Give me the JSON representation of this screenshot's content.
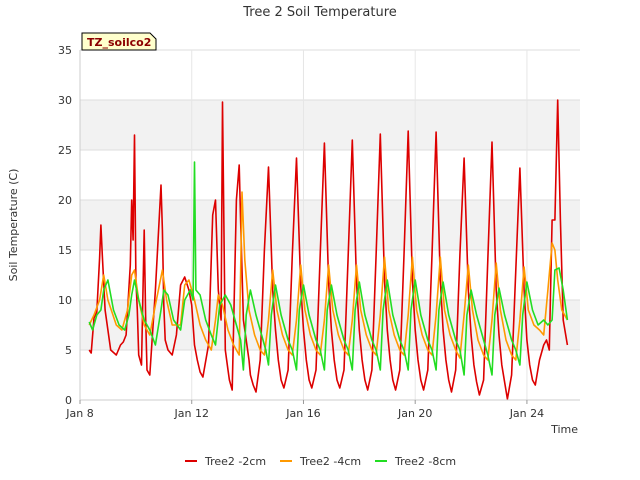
{
  "chart_data": {
    "type": "line",
    "title": "Tree 2 Soil Temperature",
    "xlabel": "Time",
    "ylabel": "Soil Temperature (C)",
    "site_label": "TZ_soilco2",
    "ylim": [
      0,
      35
    ],
    "xlim": [
      8.0,
      25.9
    ],
    "yticks": [
      0,
      5,
      10,
      15,
      20,
      25,
      30,
      35
    ],
    "xticks": [
      {
        "x": 8,
        "label": "Jan 8"
      },
      {
        "x": 12,
        "label": "Jan 12"
      },
      {
        "x": 16,
        "label": "Jan 16"
      },
      {
        "x": 20,
        "label": "Jan 20"
      },
      {
        "x": 24,
        "label": "Jan 24"
      }
    ],
    "grid": true,
    "legend_position": "bottom",
    "series": [
      {
        "name": "Tree2 -2cm",
        "color": "#dd0000",
        "x": [
          8.33,
          8.4,
          8.5,
          8.6,
          8.7,
          8.75,
          8.8,
          8.9,
          9.1,
          9.3,
          9.45,
          9.55,
          9.65,
          9.8,
          9.85,
          9.9,
          9.95,
          10.0,
          10.05,
          10.1,
          10.2,
          10.3,
          10.35,
          10.4,
          10.5,
          10.7,
          10.9,
          10.95,
          11.0,
          11.05,
          11.15,
          11.3,
          11.45,
          11.6,
          11.75,
          11.9,
          12.0,
          12.1,
          12.2,
          12.3,
          12.4,
          12.6,
          12.75,
          12.85,
          12.95,
          13.05,
          13.1,
          13.2,
          13.3,
          13.35,
          13.45,
          13.6,
          13.7,
          13.75,
          13.85,
          13.95,
          14.05,
          14.1,
          14.2,
          14.3,
          14.45,
          14.6,
          14.75,
          14.9,
          15.0,
          15.1,
          15.2,
          15.3,
          15.45,
          15.6,
          15.75,
          15.9,
          16.0,
          16.1,
          16.2,
          16.3,
          16.45,
          16.6,
          16.75,
          16.9,
          17.0,
          17.1,
          17.2,
          17.3,
          17.45,
          17.6,
          17.75,
          17.9,
          18.0,
          18.1,
          18.2,
          18.3,
          18.45,
          18.6,
          18.75,
          18.9,
          19.0,
          19.1,
          19.2,
          19.3,
          19.45,
          19.6,
          19.75,
          19.9,
          20.0,
          20.1,
          20.2,
          20.3,
          20.45,
          20.6,
          20.75,
          20.9,
          21.0,
          21.1,
          21.2,
          21.3,
          21.45,
          21.6,
          21.75,
          21.9,
          22.0,
          22.1,
          22.2,
          22.3,
          22.45,
          22.6,
          22.75,
          22.9,
          23.0,
          23.1,
          23.2,
          23.3,
          23.45,
          23.6,
          23.75,
          23.9,
          24.0,
          24.1,
          24.2,
          24.3,
          24.45,
          24.6,
          24.7,
          24.8,
          24.9,
          25.0,
          25.1,
          25.2,
          25.3,
          25.45
        ],
        "y": [
          5.0,
          4.7,
          8.2,
          8.8,
          14.2,
          17.5,
          14.5,
          9.0,
          5.0,
          4.5,
          5.5,
          5.8,
          6.5,
          13.5,
          20.0,
          16.0,
          26.5,
          12.0,
          9.0,
          4.5,
          3.5,
          17.0,
          8.5,
          3.0,
          2.5,
          11.0,
          21.5,
          17.0,
          9.5,
          6.0,
          5.0,
          4.5,
          6.5,
          11.5,
          12.3,
          11.0,
          9.5,
          5.5,
          4.0,
          2.8,
          2.3,
          5.5,
          18.5,
          20.0,
          11.0,
          8.0,
          29.8,
          5.0,
          3.0,
          2.0,
          1.0,
          20.0,
          23.5,
          18.0,
          8.0,
          6.0,
          4.0,
          2.5,
          1.5,
          0.8,
          4.0,
          15.0,
          23.3,
          11.0,
          7.0,
          4.0,
          2.0,
          1.2,
          3.0,
          14.5,
          24.2,
          11.5,
          7.0,
          4.0,
          2.0,
          1.2,
          3.0,
          14.5,
          25.7,
          11.8,
          7.0,
          4.0,
          2.0,
          1.2,
          3.0,
          14.5,
          26.0,
          11.8,
          7.0,
          4.0,
          2.0,
          1.0,
          3.0,
          14.5,
          26.6,
          12.0,
          7.0,
          4.0,
          2.0,
          1.0,
          3.0,
          14.5,
          26.9,
          12.0,
          7.0,
          4.0,
          2.0,
          1.0,
          3.0,
          14.5,
          26.8,
          12.0,
          7.0,
          4.0,
          2.0,
          0.8,
          3.0,
          14.5,
          24.2,
          11.0,
          6.5,
          3.5,
          1.8,
          0.5,
          2.0,
          14.0,
          25.8,
          11.0,
          6.5,
          3.5,
          1.8,
          0.1,
          2.5,
          13.0,
          23.2,
          11.0,
          6.0,
          3.5,
          2.0,
          1.5,
          4.0,
          5.5,
          6.0,
          5.0,
          18.0,
          18.0,
          30.0,
          18.0,
          8.0,
          5.5
        ]
      },
      {
        "name": "Tree2 -4cm",
        "color": "#ff9900",
        "x": [
          8.33,
          8.5,
          8.7,
          8.85,
          9.0,
          9.3,
          9.5,
          9.7,
          9.85,
          9.95,
          10.1,
          10.3,
          10.5,
          10.7,
          10.95,
          11.1,
          11.3,
          11.6,
          11.75,
          11.9,
          12.1,
          12.3,
          12.5,
          12.7,
          12.85,
          12.95,
          13.1,
          13.3,
          13.5,
          13.7,
          13.8,
          13.9,
          14.05,
          14.25,
          14.45,
          14.6,
          14.75,
          14.9,
          15.05,
          15.25,
          15.45,
          15.6,
          15.75,
          15.9,
          16.05,
          16.25,
          16.45,
          16.6,
          16.75,
          16.9,
          17.05,
          17.25,
          17.45,
          17.6,
          17.75,
          17.9,
          18.05,
          18.25,
          18.45,
          18.6,
          18.75,
          18.9,
          19.05,
          19.25,
          19.45,
          19.6,
          19.75,
          19.9,
          20.05,
          20.25,
          20.45,
          20.6,
          20.75,
          20.9,
          21.05,
          21.25,
          21.45,
          21.6,
          21.75,
          21.9,
          22.05,
          22.25,
          22.45,
          22.6,
          22.75,
          22.9,
          23.05,
          23.25,
          23.45,
          23.6,
          23.75,
          23.9,
          24.05,
          24.25,
          24.45,
          24.6,
          24.75,
          24.9,
          25.0,
          25.1,
          25.25,
          25.45
        ],
        "y": [
          7.5,
          8.5,
          10.0,
          12.5,
          10.0,
          7.5,
          7.0,
          9.0,
          12.5,
          13.0,
          10.0,
          7.5,
          6.5,
          9.5,
          13.0,
          10.0,
          7.5,
          7.5,
          11.5,
          12.0,
          10.0,
          7.5,
          6.0,
          5.0,
          8.0,
          10.5,
          9.5,
          7.0,
          5.5,
          4.5,
          20.8,
          14.0,
          9.0,
          6.5,
          5.0,
          4.5,
          8.0,
          13.0,
          9.0,
          6.5,
          5.0,
          4.5,
          8.0,
          13.5,
          9.0,
          6.5,
          5.0,
          4.5,
          8.0,
          13.5,
          9.0,
          6.5,
          5.0,
          4.5,
          8.0,
          13.5,
          9.0,
          6.5,
          5.0,
          4.5,
          8.5,
          14.3,
          9.0,
          6.5,
          5.0,
          4.5,
          8.5,
          14.3,
          9.0,
          6.5,
          5.0,
          4.5,
          8.5,
          14.3,
          9.0,
          6.5,
          5.0,
          4.2,
          8.5,
          13.5,
          9.0,
          6.0,
          4.5,
          4.0,
          8.0,
          13.7,
          9.0,
          6.0,
          4.5,
          4.0,
          8.0,
          13.3,
          9.0,
          7.5,
          7.0,
          6.5,
          11.0,
          15.7,
          15.0,
          12.0,
          9.0,
          8.0
        ]
      },
      {
        "name": "Tree2 -8cm",
        "color": "#22dd22",
        "x": [
          8.33,
          8.45,
          8.6,
          8.75,
          8.85,
          9.0,
          9.2,
          9.4,
          9.6,
          9.75,
          9.85,
          9.95,
          10.1,
          10.3,
          10.5,
          10.7,
          10.9,
          11.0,
          11.15,
          11.35,
          11.6,
          11.75,
          11.95,
          12.05,
          12.1,
          12.15,
          12.3,
          12.5,
          12.7,
          12.85,
          13.0,
          13.2,
          13.4,
          13.6,
          13.75,
          13.85,
          13.95,
          14.1,
          14.3,
          14.5,
          14.65,
          14.75,
          14.85,
          15.0,
          15.2,
          15.45,
          15.6,
          15.75,
          15.85,
          16.0,
          16.2,
          16.45,
          16.6,
          16.75,
          16.85,
          17.0,
          17.2,
          17.45,
          17.6,
          17.75,
          17.85,
          18.0,
          18.2,
          18.45,
          18.6,
          18.75,
          18.85,
          19.0,
          19.2,
          19.45,
          19.6,
          19.75,
          19.85,
          20.0,
          20.2,
          20.45,
          20.6,
          20.75,
          20.85,
          21.0,
          21.2,
          21.45,
          21.6,
          21.75,
          21.85,
          22.0,
          22.2,
          22.45,
          22.6,
          22.75,
          22.85,
          23.0,
          23.2,
          23.45,
          23.6,
          23.75,
          23.85,
          24.0,
          24.2,
          24.4,
          24.6,
          24.75,
          24.9,
          25.0,
          25.15,
          25.3,
          25.45
        ],
        "y": [
          7.8,
          7.0,
          8.5,
          9.0,
          11.0,
          12.0,
          9.0,
          7.5,
          7.0,
          8.5,
          10.5,
          12.0,
          10.0,
          8.0,
          7.0,
          5.5,
          9.0,
          11.0,
          10.5,
          8.0,
          7.0,
          10.0,
          11.0,
          10.0,
          23.8,
          11.0,
          10.5,
          8.0,
          6.5,
          5.5,
          9.5,
          10.5,
          9.5,
          7.5,
          6.0,
          3.0,
          8.5,
          11.0,
          8.5,
          6.5,
          5.0,
          3.5,
          8.5,
          11.5,
          8.5,
          6.0,
          5.0,
          3.0,
          9.0,
          11.5,
          8.5,
          6.0,
          5.0,
          3.0,
          9.0,
          11.5,
          8.5,
          6.0,
          5.0,
          3.0,
          9.0,
          11.8,
          8.5,
          6.0,
          5.0,
          3.0,
          9.0,
          12.0,
          8.5,
          6.0,
          5.0,
          3.0,
          9.0,
          12.0,
          8.5,
          6.0,
          5.0,
          3.0,
          9.0,
          11.8,
          8.5,
          6.0,
          5.0,
          2.5,
          8.5,
          11.0,
          8.5,
          6.0,
          4.5,
          2.5,
          8.5,
          11.2,
          8.5,
          6.0,
          5.0,
          3.5,
          8.5,
          11.8,
          9.0,
          7.5,
          8.0,
          7.5,
          8.0,
          13.0,
          13.2,
          11.0,
          8.0
        ]
      }
    ]
  }
}
